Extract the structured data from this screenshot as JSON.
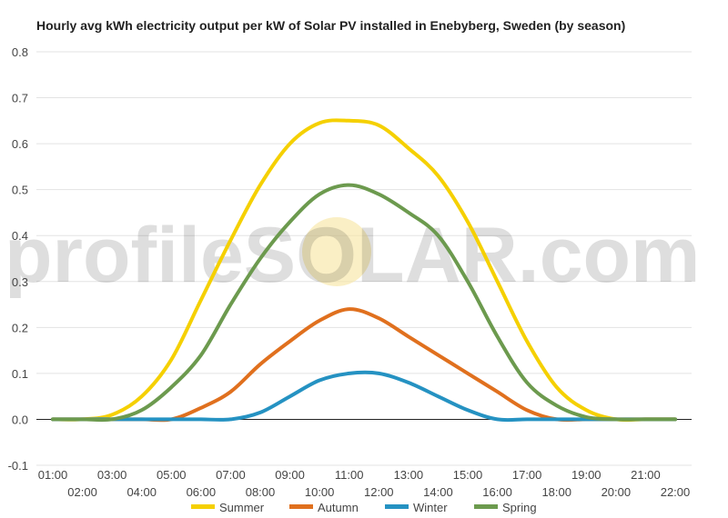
{
  "chart_data": {
    "type": "line",
    "title": "Hourly avg kWh electricity output per kW of Solar PV installed in Enebyberg, Sweden (by season)",
    "watermark": {
      "prefix": "profile",
      "highlight": "SOLAR",
      "suffix": ".com"
    },
    "x": [
      "01:00",
      "02:00",
      "03:00",
      "04:00",
      "05:00",
      "06:00",
      "07:00",
      "08:00",
      "09:00",
      "10:00",
      "11:00",
      "12:00",
      "13:00",
      "14:00",
      "15:00",
      "16:00",
      "17:00",
      "18:00",
      "19:00",
      "20:00",
      "21:00",
      "22:00"
    ],
    "ylim": [
      -0.1,
      0.8
    ],
    "yticks": [
      "-0.1",
      "0.0",
      "0.1",
      "0.2",
      "0.3",
      "0.4",
      "0.5",
      "0.6",
      "0.7",
      "0.8"
    ],
    "grid": true,
    "legend_position": "bottom",
    "series": [
      {
        "name": "Summer",
        "color": "#f5d000",
        "values": [
          0.0,
          0.0,
          0.01,
          0.05,
          0.13,
          0.26,
          0.39,
          0.51,
          0.6,
          0.645,
          0.65,
          0.64,
          0.59,
          0.53,
          0.43,
          0.3,
          0.17,
          0.07,
          0.02,
          0.0,
          0.0,
          0.0
        ]
      },
      {
        "name": "Autumn",
        "color": "#e0701e",
        "values": [
          0.0,
          0.0,
          0.0,
          0.0,
          0.0,
          0.025,
          0.06,
          0.12,
          0.17,
          0.215,
          0.24,
          0.22,
          0.18,
          0.14,
          0.1,
          0.06,
          0.02,
          0.0,
          0.0,
          0.0,
          0.0,
          0.0
        ]
      },
      {
        "name": "Winter",
        "color": "#2592c2",
        "values": [
          0.0,
          0.0,
          0.0,
          0.0,
          0.0,
          0.0,
          0.0,
          0.015,
          0.05,
          0.085,
          0.1,
          0.1,
          0.08,
          0.05,
          0.02,
          0.0,
          0.0,
          0.0,
          0.0,
          0.0,
          0.0,
          0.0
        ]
      },
      {
        "name": "Spring",
        "color": "#6c9a4e",
        "values": [
          0.0,
          0.0,
          0.0,
          0.02,
          0.07,
          0.14,
          0.25,
          0.35,
          0.43,
          0.49,
          0.51,
          0.49,
          0.45,
          0.4,
          0.3,
          0.18,
          0.08,
          0.03,
          0.005,
          0.0,
          0.0,
          0.0
        ]
      }
    ]
  }
}
